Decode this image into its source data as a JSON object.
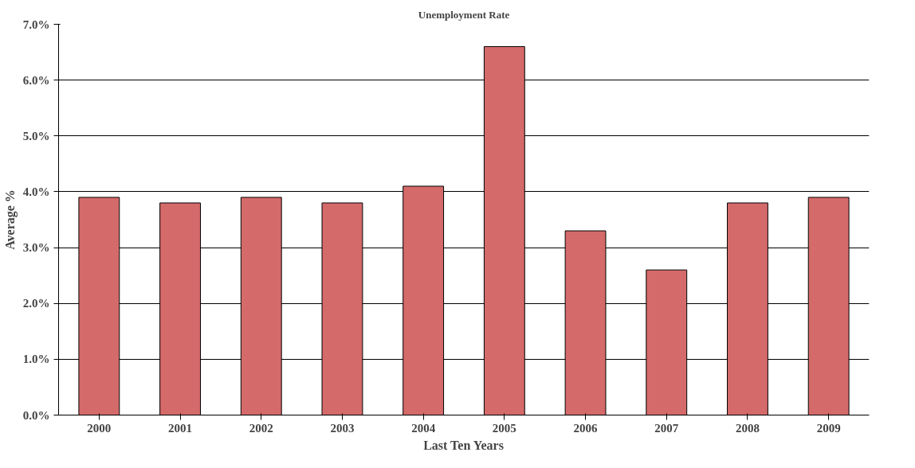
{
  "chart_data": {
    "type": "bar",
    "title": "Unemployment Rate",
    "xlabel": "Last Ten Years",
    "ylabel": "Average %",
    "categories": [
      "2000",
      "2001",
      "2002",
      "2003",
      "2004",
      "2005",
      "2006",
      "2007",
      "2008",
      "2009"
    ],
    "values": [
      3.9,
      3.8,
      3.9,
      3.8,
      4.1,
      6.6,
      3.3,
      2.6,
      3.8,
      3.9
    ],
    "color": "#d46a6a",
    "ylim": [
      0,
      7
    ],
    "yticks": [
      {
        "value": 0,
        "label": "0.0%"
      },
      {
        "value": 1,
        "label": "1.0%"
      },
      {
        "value": 2,
        "label": "2.0%"
      },
      {
        "value": 3,
        "label": "3.0%"
      },
      {
        "value": 4,
        "label": "4.0%"
      },
      {
        "value": 5,
        "label": "5.0%"
      },
      {
        "value": 6,
        "label": "6.0%"
      },
      {
        "value": 7,
        "label": "7.0%"
      }
    ],
    "grid": "y"
  }
}
